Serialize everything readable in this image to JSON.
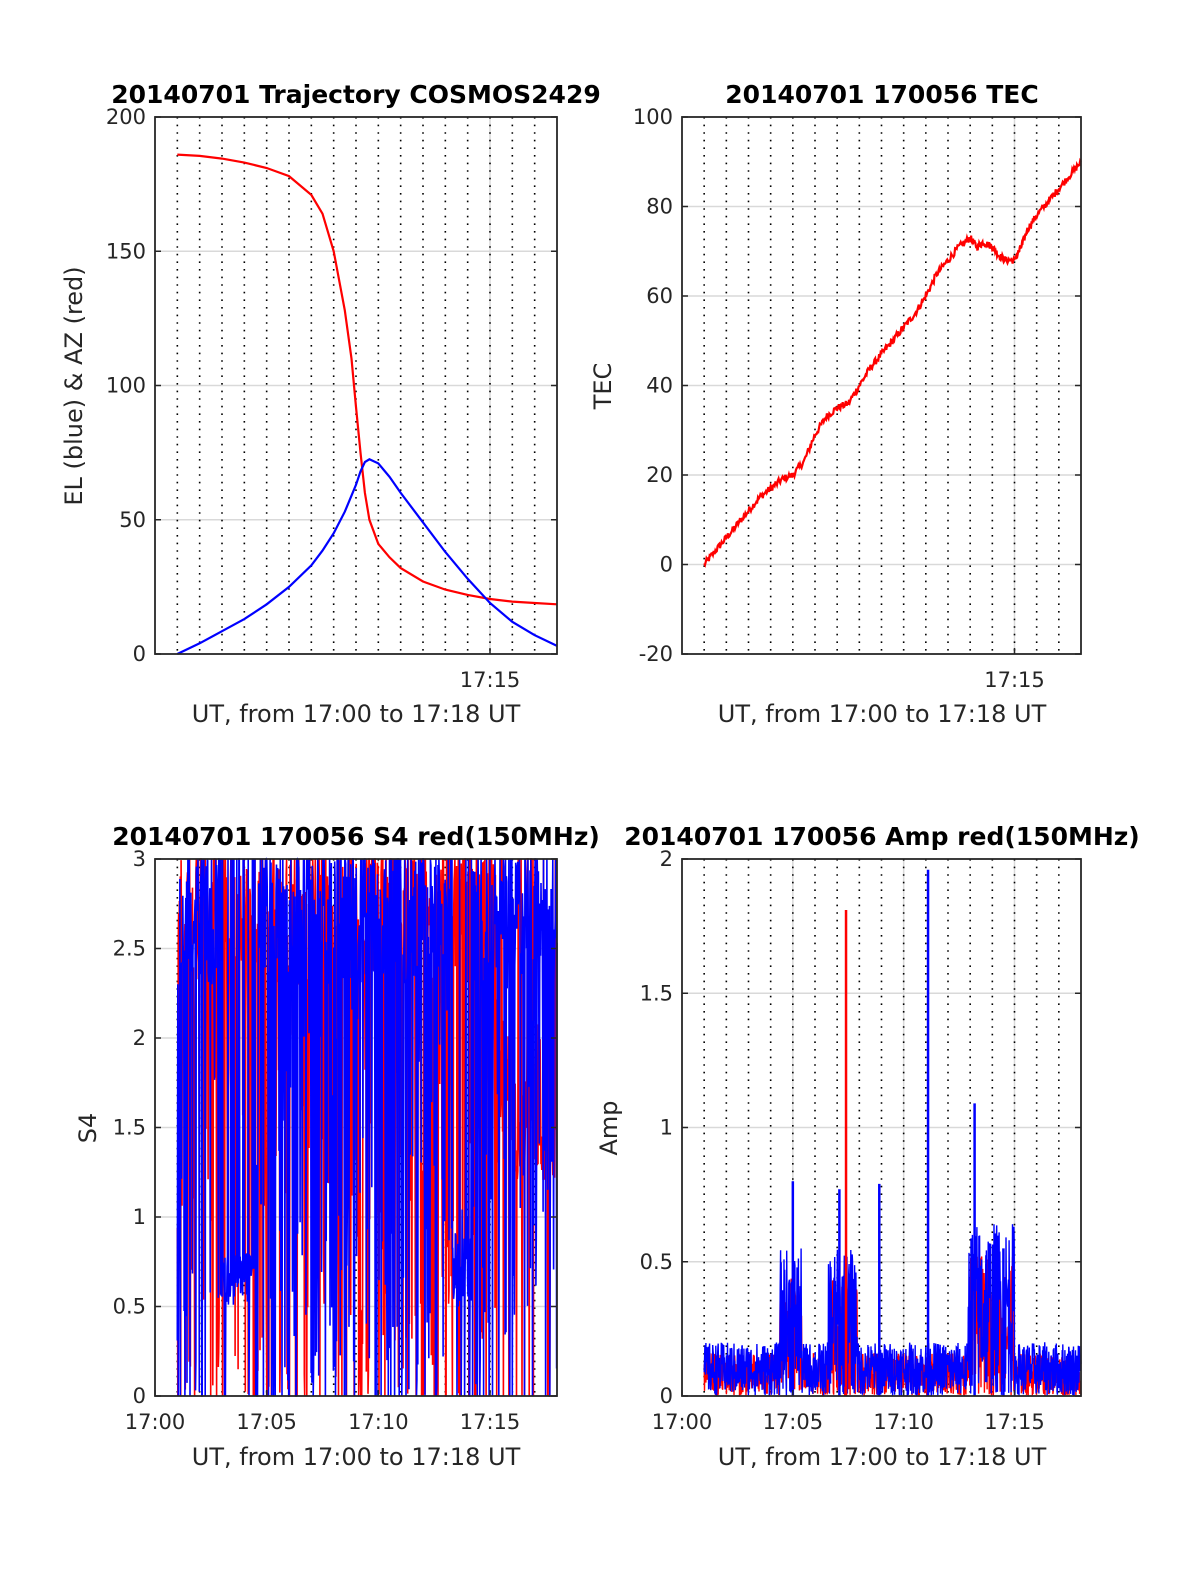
{
  "colors": {
    "red": "#ff0000",
    "blue": "#0000ff",
    "axis": "#262626",
    "grid": "#d9d9d9",
    "dotgrid": "#000000"
  },
  "chart_data": [
    {
      "type": "line",
      "title": "20140701 Trajectory COSMOS2429",
      "xlabel": "UT, from 17:00 to 17:18 UT",
      "ylabel": "EL (blue) & AZ (red)",
      "xlim": [
        0,
        18
      ],
      "ylim": [
        0,
        200
      ],
      "yticks": [
        0,
        50,
        100,
        150,
        200
      ],
      "ytick_labels": [
        "0",
        "50",
        "100",
        "150",
        "200"
      ],
      "xticks": [
        15
      ],
      "xtick_labels": [
        "17:15"
      ],
      "grid": true,
      "series": [
        {
          "color": "red",
          "x": [
            1,
            2,
            3,
            4,
            5,
            6,
            7,
            7.5,
            8,
            8.5,
            8.8,
            9,
            9.2,
            9.4,
            9.6,
            10,
            10.5,
            11,
            12,
            13,
            14,
            15,
            16,
            17,
            18
          ],
          "y": [
            186,
            185.5,
            184.5,
            183,
            181,
            178,
            171,
            164,
            150,
            128,
            110,
            92,
            75,
            60,
            50,
            41,
            36,
            32,
            27,
            24,
            22,
            20.5,
            19.5,
            19,
            18.5
          ]
        },
        {
          "color": "blue",
          "x": [
            1,
            2,
            3,
            4,
            5,
            6,
            7,
            7.5,
            8,
            8.5,
            9,
            9.2,
            9.4,
            9.6,
            10,
            10.5,
            11,
            12,
            13,
            14,
            15,
            16,
            17,
            18
          ],
          "y": [
            0,
            4,
            8.5,
            13,
            18.5,
            25,
            33,
            38.5,
            45,
            53,
            63,
            68,
            71.5,
            72.5,
            71,
            66,
            60,
            49,
            38,
            28,
            19,
            12,
            7,
            3
          ]
        }
      ]
    },
    {
      "type": "line",
      "title": "20140701 170056 TEC",
      "xlabel": "UT, from 17:00 to 17:18 UT",
      "ylabel": "TEC",
      "xlim": [
        0,
        18
      ],
      "ylim": [
        -20,
        100
      ],
      "yticks": [
        -20,
        0,
        20,
        40,
        60,
        80,
        100
      ],
      "ytick_labels": [
        "-20",
        "0",
        "20",
        "40",
        "60",
        "80",
        "100"
      ],
      "xticks": [
        15
      ],
      "xtick_labels": [
        "17:15"
      ],
      "grid": true,
      "series": [
        {
          "color": "red",
          "x": [
            1,
            1.5,
            2,
            2.5,
            3,
            3.5,
            4,
            4.5,
            5,
            5.5,
            6,
            6.5,
            7,
            7.5,
            8,
            8.5,
            9,
            9.5,
            10,
            10.5,
            11,
            11.5,
            12,
            12.5,
            13,
            13.3,
            13.6,
            14,
            14.3,
            14.6,
            15,
            15.3,
            15.6,
            16,
            16.5,
            17,
            17.5,
            18
          ],
          "y": [
            0,
            3,
            6,
            9,
            12,
            15,
            17,
            19,
            20,
            23,
            29,
            33,
            35,
            36,
            40,
            44,
            47,
            50,
            53,
            56,
            60,
            65,
            68,
            71,
            73,
            71,
            72,
            71,
            69,
            68,
            68,
            71,
            75,
            78,
            81,
            84,
            87,
            90
          ]
        }
      ]
    },
    {
      "type": "line",
      "title": "20140701 170056 S4 red(150MHz)",
      "xlabel": "UT, from 17:00 to 17:18 UT",
      "ylabel": "S4",
      "xlim": [
        0,
        18
      ],
      "ylim": [
        0,
        3
      ],
      "yticks": [
        0,
        0.5,
        1,
        1.5,
        2,
        2.5,
        3
      ],
      "ytick_labels": [
        "0",
        "0.5",
        "1",
        "1.5",
        "2",
        "2.5",
        "3"
      ],
      "xticks": [
        0,
        5,
        10,
        15
      ],
      "xtick_labels": [
        "17:00",
        "17:05",
        "17:10",
        "17:15"
      ],
      "grid": true,
      "x_start": 1,
      "x_end": 18,
      "series": [
        {
          "color": "red",
          "name": "",
          "noise": "s4"
        },
        {
          "color": "blue",
          "name": "",
          "noise": "s4"
        }
      ]
    },
    {
      "type": "line",
      "title": "20140701 170056 Amp red(150MHz)",
      "xlabel": "UT, from 17:00 to 17:18 UT",
      "ylabel": "Amp",
      "xlim": [
        0,
        18
      ],
      "ylim": [
        0,
        2
      ],
      "yticks": [
        0,
        0.5,
        1,
        1.5,
        2
      ],
      "ytick_labels": [
        "0",
        "0.5",
        "1",
        "1.5",
        "2"
      ],
      "xticks": [
        0,
        5,
        10,
        15
      ],
      "xtick_labels": [
        "17:00",
        "17:05",
        "17:10",
        "17:15"
      ],
      "grid": true,
      "x_start": 1,
      "x_end": 18,
      "peaks": [
        {
          "color": "red",
          "x": 7.4,
          "y": 1.81
        },
        {
          "color": "blue",
          "x": 11.1,
          "y": 1.96
        },
        {
          "color": "blue",
          "x": 13.2,
          "y": 1.09
        },
        {
          "color": "blue",
          "x": 5.0,
          "y": 0.8
        },
        {
          "color": "blue",
          "x": 7.1,
          "y": 0.77
        },
        {
          "color": "blue",
          "x": 8.9,
          "y": 0.79
        },
        {
          "color": "blue",
          "x": 14.5,
          "y": 0.55
        }
      ]
    }
  ]
}
